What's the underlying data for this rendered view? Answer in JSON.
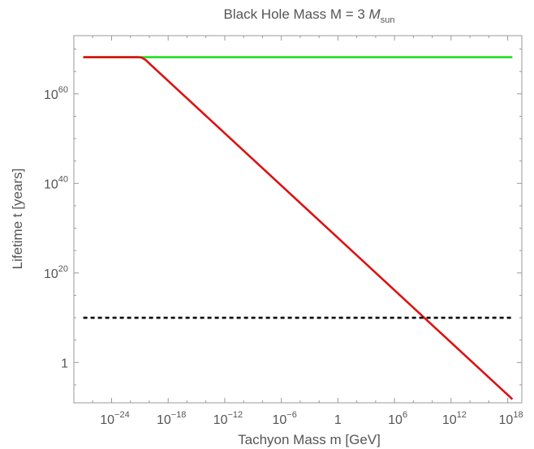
{
  "chart_data": {
    "type": "line",
    "title": {
      "text": "Black Hole Mass  M = 3 ",
      "symbol": "M",
      "subscript": "sun"
    },
    "xlabel": "Tachyon Mass  m [GeV]",
    "ylabel": "Lifetime  t [years]",
    "x_scale": "log10",
    "y_scale": "log10",
    "xlim_log10": [
      -28,
      19.5
    ],
    "ylim_log10": [
      -9,
      73
    ],
    "x_ticks": [
      {
        "base": "10",
        "exp": "−24",
        "log10": -24
      },
      {
        "base": "10",
        "exp": "−18",
        "log10": -18
      },
      {
        "base": "10",
        "exp": "−12",
        "log10": -12
      },
      {
        "base": "10",
        "exp": "−6",
        "log10": -6
      },
      {
        "base": "1",
        "exp": "",
        "log10": 0
      },
      {
        "base": "10",
        "exp": "6",
        "log10": 6
      },
      {
        "base": "10",
        "exp": "12",
        "log10": 12
      },
      {
        "base": "10",
        "exp": "18",
        "log10": 18
      }
    ],
    "y_ticks": [
      {
        "base": "1",
        "exp": "",
        "log10": 0
      },
      {
        "base": "10",
        "exp": "20",
        "log10": 20
      },
      {
        "base": "10",
        "exp": "40",
        "log10": 40
      },
      {
        "base": "10",
        "exp": "60",
        "log10": 60
      }
    ],
    "grid": false,
    "series": [
      {
        "color": "#22dd22",
        "dash": "solid",
        "points_log10": [
          [
            -27,
            68.2
          ],
          [
            18.5,
            68.2
          ]
        ]
      },
      {
        "color": "#dd1111",
        "dash": "solid",
        "points_log10": [
          [
            -27,
            68.2
          ],
          [
            -21.2,
            68.2
          ],
          [
            -20.8,
            68.1
          ],
          [
            -20.4,
            67.6
          ],
          [
            -19.8,
            66.4
          ],
          [
            18.5,
            -8.2
          ]
        ]
      },
      {
        "color": "#000000",
        "dash": "dashed",
        "points_log10": [
          [
            -27,
            10
          ],
          [
            18.5,
            10
          ]
        ]
      }
    ],
    "colors": {
      "axes": "#999999",
      "text": "#555555"
    }
  }
}
